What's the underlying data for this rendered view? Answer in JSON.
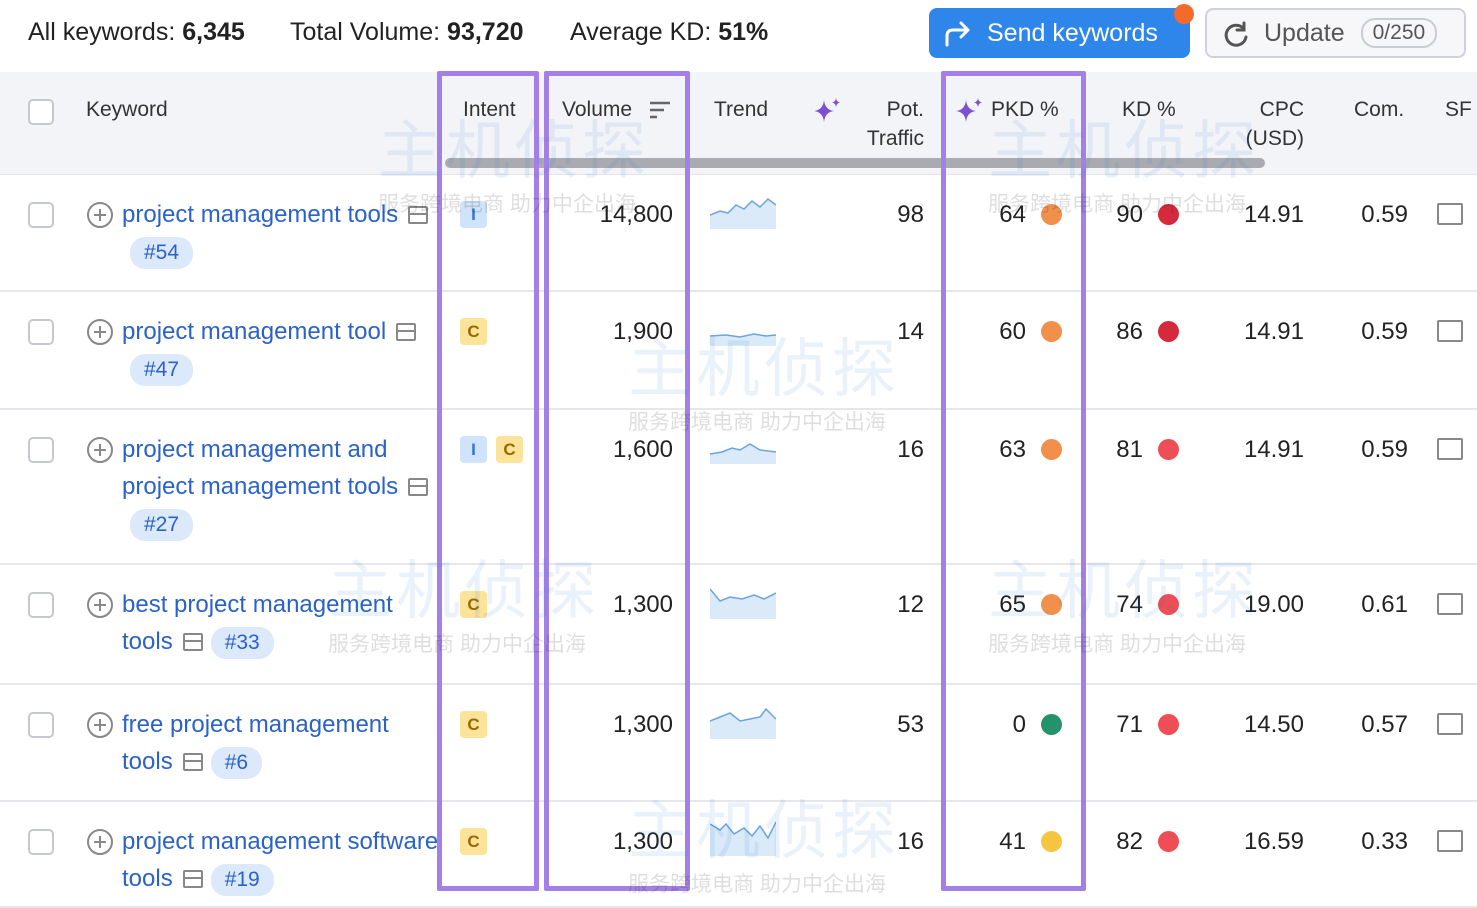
{
  "header": {
    "all_keywords_label": "All keywords:",
    "all_keywords": "6,345",
    "total_volume_label": "Total Volume:",
    "total_volume": "93,720",
    "average_kd_label": "Average KD:",
    "average_kd": "51%",
    "send_button": "Send keywords",
    "update_button": "Update",
    "update_count": "0/250"
  },
  "watermark": {
    "title": "主机侦探",
    "subtitle": "服务跨境电商 助力中企出海"
  },
  "table": {
    "columns": [
      "Keyword",
      "Intent",
      "Volume",
      "Trend",
      "Pot. Traffic",
      "PKD %",
      "KD %",
      "CPC (USD)",
      "Com.",
      "SF"
    ],
    "rows": [
      {
        "keyword": "project management tools",
        "position": "#54",
        "intents": [
          "I"
        ],
        "volume": "14,800",
        "pot_traffic": "98",
        "pkd": "64",
        "pkd_color": "#f0904a",
        "kd": "90",
        "kd_color": "#d42a3c",
        "cpc": "14.91",
        "com": "0.59"
      },
      {
        "keyword": "project management tool",
        "position": "#47",
        "intents": [
          "C"
        ],
        "volume": "1,900",
        "pot_traffic": "14",
        "pkd": "60",
        "pkd_color": "#f0904a",
        "kd": "86",
        "kd_color": "#d42a3c",
        "cpc": "14.91",
        "com": "0.59"
      },
      {
        "keyword": "project management and project management tools",
        "position": "#27",
        "intents": [
          "I",
          "C"
        ],
        "volume": "1,600",
        "pot_traffic": "16",
        "pkd": "63",
        "pkd_color": "#f0904a",
        "kd": "81",
        "kd_color": "#ee4e55",
        "cpc": "14.91",
        "com": "0.59"
      },
      {
        "keyword": "best project management tools",
        "position": "#33",
        "intents": [
          "C"
        ],
        "volume": "1,300",
        "pot_traffic": "12",
        "pkd": "65",
        "pkd_color": "#f0904a",
        "kd": "74",
        "kd_color": "#ee4e55",
        "cpc": "19.00",
        "com": "0.61"
      },
      {
        "keyword": "free project management tools",
        "position": "#6",
        "intents": [
          "C"
        ],
        "volume": "1,300",
        "pot_traffic": "53",
        "pkd": "0",
        "pkd_color": "#24926b",
        "kd": "71",
        "kd_color": "#ee4e55",
        "cpc": "14.50",
        "com": "0.57"
      },
      {
        "keyword": "project management software tools",
        "position": "#19",
        "intents": [
          "C"
        ],
        "volume": "1,300",
        "pot_traffic": "16",
        "pkd": "41",
        "pkd_color": "#f5c542",
        "kd": "82",
        "kd_color": "#ee4e55",
        "cpc": "16.59",
        "com": "0.33"
      }
    ]
  }
}
